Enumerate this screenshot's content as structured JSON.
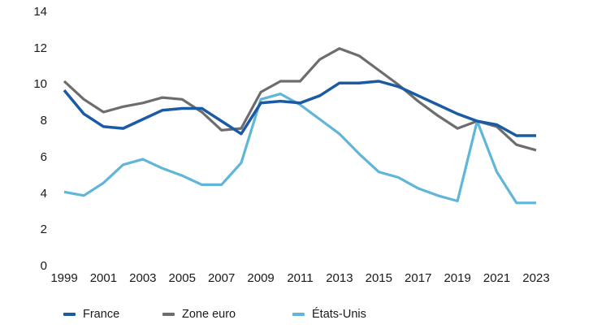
{
  "chart_data": {
    "type": "line",
    "title": "",
    "xlabel": "",
    "ylabel": "",
    "grid": false,
    "legend_position": "bottom",
    "ylim": [
      0,
      14
    ],
    "yticks": [
      0,
      2,
      4,
      6,
      8,
      10,
      12,
      14
    ],
    "xtick_labels": [
      "1999",
      "2001",
      "2003",
      "2005",
      "2007",
      "2009",
      "2011",
      "2013",
      "2015",
      "2017",
      "2019",
      "2021",
      "2023"
    ],
    "x": [
      1999,
      2000,
      2001,
      2002,
      2003,
      2004,
      2005,
      2006,
      2007,
      2008,
      2009,
      2010,
      2011,
      2012,
      2013,
      2014,
      2015,
      2016,
      2017,
      2018,
      2019,
      2020,
      2021,
      2022,
      2023
    ],
    "series": [
      {
        "name": "France",
        "slug": "france",
        "color": "#1B5BA4",
        "values": [
          9.7,
          8.4,
          7.7,
          7.6,
          8.1,
          8.6,
          8.7,
          8.7,
          8.0,
          7.3,
          9.0,
          9.1,
          9.0,
          9.4,
          10.1,
          10.1,
          10.2,
          9.9,
          9.4,
          8.9,
          8.4,
          8.0,
          7.8,
          7.2,
          7.2
        ]
      },
      {
        "name": "Zone euro",
        "slug": "zone-euro",
        "color": "#6D6D6D",
        "values": [
          10.2,
          9.2,
          8.5,
          8.8,
          9.0,
          9.3,
          9.2,
          8.5,
          7.5,
          7.6,
          9.6,
          10.2,
          10.2,
          11.4,
          12.0,
          11.6,
          10.8,
          10.0,
          9.1,
          8.3,
          7.6,
          8.0,
          7.7,
          6.7,
          6.4
        ]
      },
      {
        "name": "États-Unis",
        "slug": "etats-unis",
        "color": "#5FB6D8",
        "values": [
          4.1,
          3.9,
          4.6,
          5.6,
          5.9,
          5.4,
          5.0,
          4.5,
          4.5,
          5.7,
          9.2,
          9.5,
          8.9,
          8.1,
          7.3,
          6.2,
          5.2,
          4.9,
          4.3,
          3.9,
          3.6,
          8.0,
          5.2,
          3.5,
          3.5
        ]
      }
    ]
  }
}
